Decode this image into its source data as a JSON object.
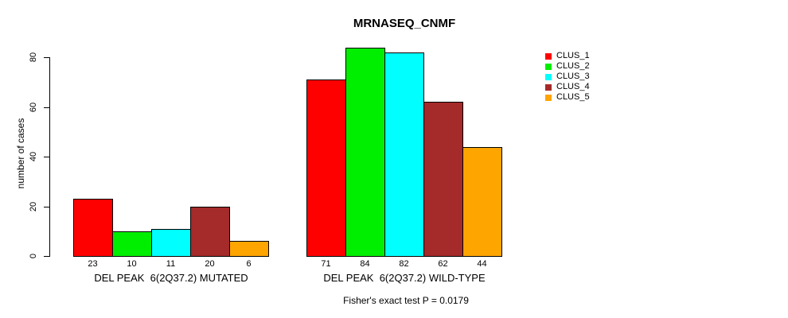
{
  "chart_data": {
    "type": "bar",
    "title": "MRNASEQ_CNMF",
    "ylabel": "number of cases",
    "xlabel": "",
    "ylim": [
      0,
      84
    ],
    "yticks": [
      0,
      20,
      40,
      60,
      80
    ],
    "grid": false,
    "legend_position": "right-outside",
    "categories": [
      "DEL PEAK  6(2Q37.2) MUTATED",
      "DEL PEAK  6(2Q37.2) WILD-TYPE"
    ],
    "series": [
      {
        "name": "CLUS_1",
        "color": "#ff0000",
        "values": [
          23,
          71
        ]
      },
      {
        "name": "CLUS_2",
        "color": "#00ee00",
        "values": [
          10,
          84
        ]
      },
      {
        "name": "CLUS_3",
        "color": "#00ffff",
        "values": [
          11,
          82
        ]
      },
      {
        "name": "CLUS_4",
        "color": "#a52a2a",
        "values": [
          20,
          62
        ]
      },
      {
        "name": "CLUS_5",
        "color": "#ffa500",
        "values": [
          6,
          44
        ]
      }
    ],
    "bar_value_labels_shown": true,
    "annotation": "Fisher's exact test P = 0.0179"
  }
}
